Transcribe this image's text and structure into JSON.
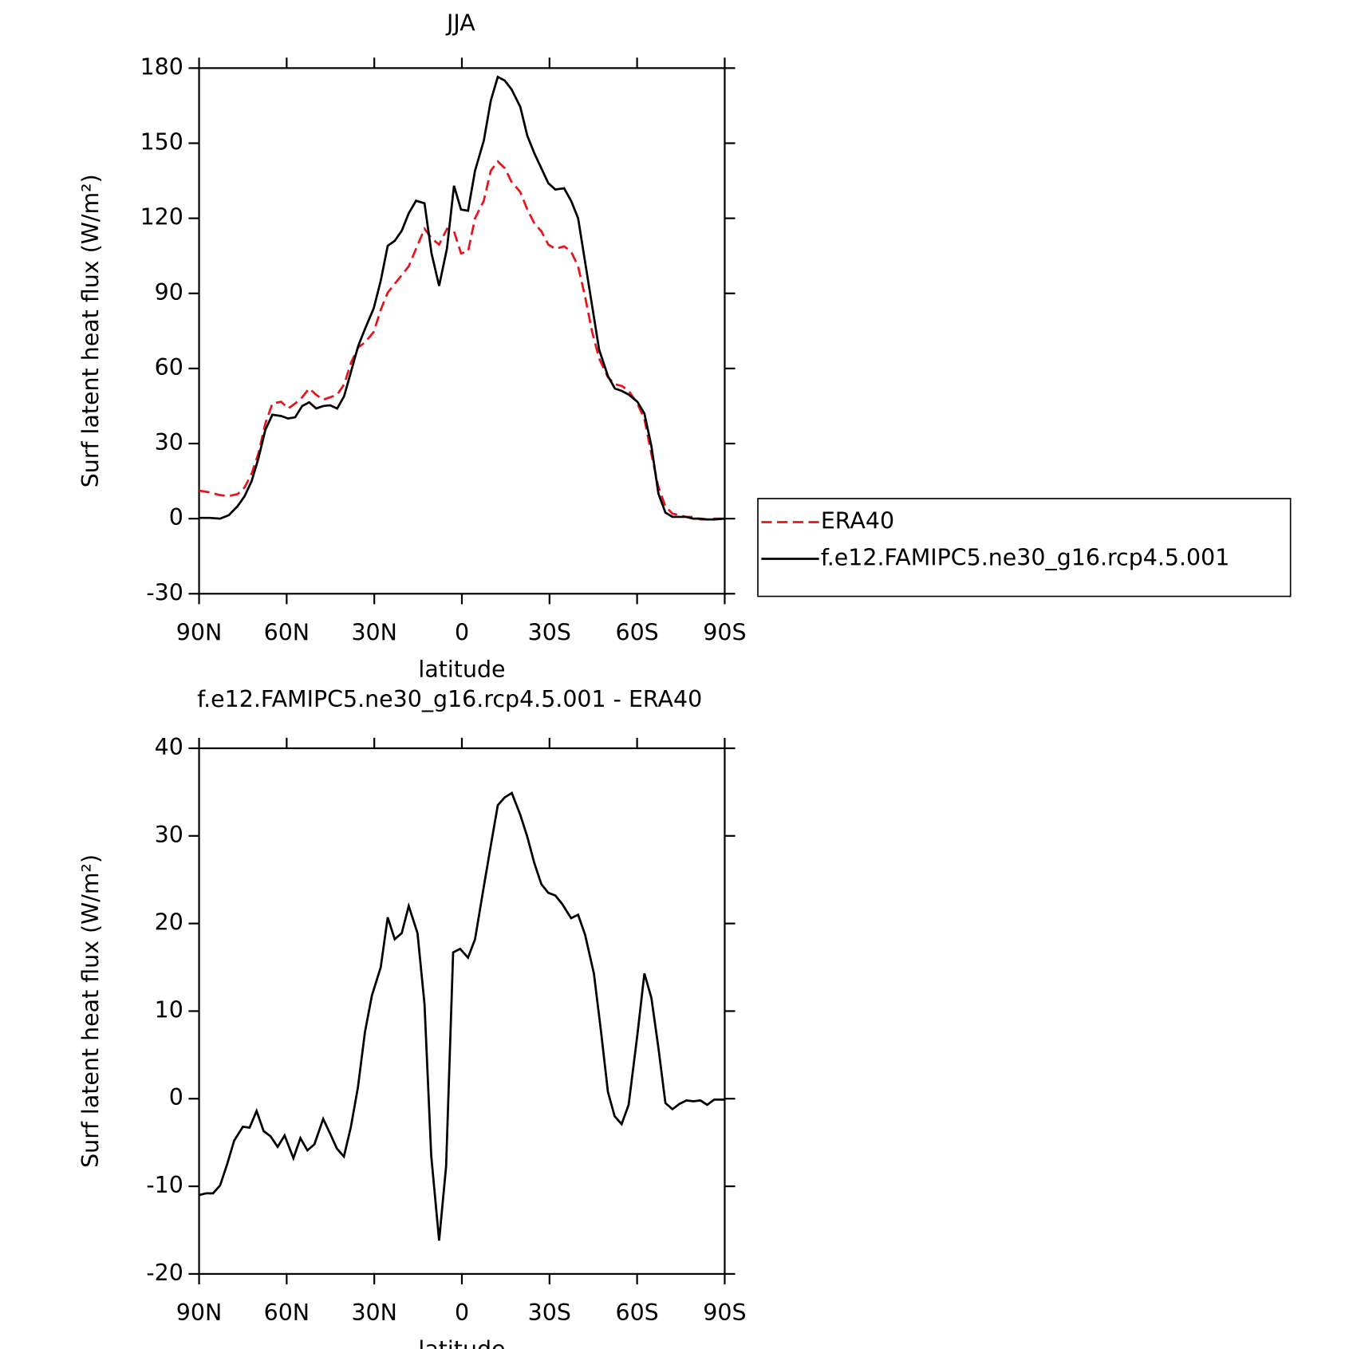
{
  "chart_data": [
    {
      "type": "line",
      "title": "JJA",
      "x_label": "latitude",
      "y_label": "Surf latent heat flux (W/m²)",
      "x": [
        90,
        86.4,
        82.8,
        79.8,
        76.8,
        74.4,
        72,
        69.7,
        67.3,
        64.9,
        61.9,
        59.5,
        57.1,
        54.7,
        52.3,
        49.9,
        47.5,
        45.1,
        42.7,
        40.3,
        37.9,
        35.5,
        33.1,
        30.2,
        27.8,
        25.4,
        23,
        20.6,
        18.2,
        15.7,
        12.8,
        10.4,
        7.8,
        5.1,
        2.7,
        0.3,
        -2.1,
        -4.5,
        -7.5,
        -9.9,
        -12.3,
        -14.7,
        -17,
        -20,
        -22.4,
        -24.8,
        -27.2,
        -29.6,
        -32,
        -35,
        -37.4,
        -39.8,
        -42.2,
        -44.6,
        -47,
        -50,
        -52.4,
        -54.8,
        -57.2,
        -60.1,
        -62.5,
        -64.9,
        -67.3,
        -69.7,
        -72.1,
        -74.4,
        -76.8,
        -79.2,
        -81.6,
        -84,
        -86.4,
        -90
      ],
      "series": [
        {
          "name": "ERA40",
          "color": "#e8141b",
          "linestyle": "dashed",
          "values": [
            11.2,
            10.5,
            9.4,
            9,
            9.8,
            12.5,
            18,
            26,
            38,
            46,
            46.7,
            44,
            46,
            48.5,
            52,
            49.5,
            47.5,
            48.5,
            49.5,
            53.7,
            62.5,
            68.4,
            70.5,
            74.6,
            83.4,
            90.3,
            93.8,
            97.3,
            100.8,
            107.8,
            115.8,
            112,
            109.5,
            115.8,
            114.8,
            106,
            106.7,
            120,
            127,
            139,
            142.7,
            140,
            134.6,
            130.5,
            123.5,
            118,
            114.8,
            109.5,
            107.8,
            108.8,
            106.7,
            100.8,
            88.6,
            74.6,
            64,
            56.5,
            53.7,
            53,
            51,
            46,
            39.8,
            25.8,
            12.6,
            4.9,
            2,
            1.4,
            0.7,
            0.7,
            -0.3,
            -0.3,
            0,
            0
          ]
        },
        {
          "name": "f.e12.FAMIPC5.ne30_g16.rcp4.5.001",
          "color": "#000000",
          "linestyle": "solid",
          "values": [
            0.3,
            0.3,
            0,
            1.4,
            5,
            9,
            15,
            24,
            35.5,
            41.5,
            41,
            40,
            40.5,
            45,
            46.5,
            44,
            45,
            45.3,
            44,
            49,
            59,
            69,
            76,
            84,
            95,
            109,
            111,
            115,
            122,
            127,
            126,
            106,
            93,
            108,
            133,
            123.5,
            123,
            139,
            151,
            167,
            176.5,
            175,
            171.5,
            164.5,
            153,
            146,
            140,
            134,
            131.5,
            132,
            127,
            120,
            102.5,
            85,
            67.5,
            57,
            52,
            51,
            49.5,
            46.7,
            42,
            29,
            10,
            2.4,
            0.7,
            0.7,
            0.7,
            0,
            0,
            -0.3,
            -0.3,
            0
          ]
        }
      ],
      "xlim": [
        90,
        -90
      ],
      "xticks": [
        {
          "value": 90,
          "label": "90N"
        },
        {
          "value": 60,
          "label": "60N"
        },
        {
          "value": 30,
          "label": "30N"
        },
        0,
        {
          "value": -30,
          "label": "30S"
        },
        {
          "value": -60,
          "label": "60S"
        },
        {
          "value": -90,
          "label": "90S"
        }
      ],
      "ylim": [
        -30,
        180
      ],
      "yticks": [
        -30,
        0,
        30,
        60,
        90,
        120,
        150,
        180
      ],
      "legend": "right"
    },
    {
      "type": "line",
      "title": "f.e12.FAMIPC5.ne30_g16.rcp4.5.001 - ERA40",
      "x_label": "latitude",
      "y_label": "Surf latent heat flux (W/m²)",
      "x": [
        90,
        87.6,
        85.2,
        82.8,
        80.4,
        78,
        75,
        72.7,
        70.3,
        67.9,
        65.5,
        63.1,
        60.7,
        57.7,
        55.3,
        52.9,
        50.5,
        47.5,
        45.1,
        42.8,
        40.4,
        38,
        35.6,
        33.2,
        30.8,
        27.8,
        25.4,
        23,
        20.6,
        18.2,
        15.2,
        12.8,
        10.5,
        7.8,
        5.4,
        3,
        0.6,
        -2.1,
        -4.5,
        -7.5,
        -9.9,
        -12.3,
        -14.7,
        -17.1,
        -20,
        -22.4,
        -24.8,
        -27.2,
        -29.6,
        -32,
        -34.4,
        -37.4,
        -39.8,
        -42.2,
        -45.2,
        -47.6,
        -50,
        -52.3,
        -54.7,
        -57.1,
        -60.1,
        -62.5,
        -64.9,
        -67.3,
        -69.7,
        -72.1,
        -74.5,
        -76.9,
        -79.3,
        -81.7,
        -84,
        -86.4,
        -90
      ],
      "color": "#000000",
      "values": [
        -11,
        -10.8,
        -10.8,
        -9.9,
        -7.5,
        -4.8,
        -3.2,
        -3.3,
        -1.4,
        -3.7,
        -4.3,
        -5.5,
        -4.2,
        -6.8,
        -4.5,
        -5.9,
        -5.2,
        -2.3,
        -4,
        -5.7,
        -6.6,
        -3.2,
        1.3,
        7.6,
        11.8,
        15,
        20.7,
        18.2,
        18.9,
        22,
        18.9,
        10.8,
        -6.5,
        -16.2,
        -7.7,
        16.7,
        17.1,
        16.1,
        18.2,
        24.2,
        28.9,
        33.5,
        34.4,
        34.9,
        32.4,
        29.9,
        26.9,
        24.5,
        23.5,
        23.2,
        22.2,
        20.6,
        21,
        18.7,
        14.3,
        7.8,
        0.8,
        -2,
        -2.9,
        -0.7,
        7.3,
        14.3,
        11.5,
        5.8,
        -0.5,
        -1.2,
        -0.6,
        -0.2,
        -0.3,
        -0.2,
        -0.7,
        -0.1,
        -0.1
      ],
      "xlim": [
        90,
        -90
      ],
      "xticks": [
        {
          "value": 90,
          "label": "90N"
        },
        {
          "value": 60,
          "label": "60N"
        },
        {
          "value": 30,
          "label": "30N"
        },
        0,
        {
          "value": -30,
          "label": "30S"
        },
        {
          "value": -60,
          "label": "60S"
        },
        {
          "value": -90,
          "label": "90S"
        }
      ],
      "ylim": [
        -20,
        40
      ],
      "yticks": [
        -20,
        -10,
        0,
        10,
        20,
        30,
        40
      ]
    }
  ]
}
